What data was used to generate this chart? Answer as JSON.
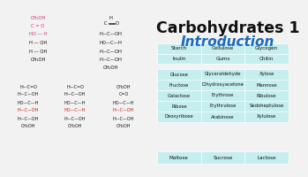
{
  "bg_color": "#f2f2f2",
  "title1": "Carbohydrates 1",
  "title2": "Introduction",
  "title1_color": "#111111",
  "title2_color": "#1a6bbf",
  "table1_rows": [
    [
      "Starch",
      "Cellulose",
      "Glycogen"
    ],
    [
      "Inulin",
      "Gums",
      "Chitin"
    ]
  ],
  "table2_rows": [
    [
      "Glucose",
      "Glyceraldehyde",
      "Xylose"
    ],
    [
      "Fructose",
      "Dihydroxyacetone",
      "Mannose"
    ],
    [
      "Galactose",
      "Erythrose",
      "Ribulose"
    ],
    [
      "Ribose",
      "Erythrulose",
      "Sedoheptulose"
    ],
    [
      "Deoxyribose",
      "Arabinose",
      "Xylulose"
    ]
  ],
  "table3_rows": [
    [
      "Maltose",
      "Sucrose",
      "Lactose"
    ]
  ],
  "table_bg": "#c5eeee",
  "table_line": "#ffffff",
  "chem_black": "#111111",
  "chem_pink": "#cc3377",
  "chem_red": "#cc1111",
  "top_left_struct": [
    [
      "CH₂OH",
      "pink"
    ],
    [
      "C = O",
      "pink"
    ],
    [
      "HO — H",
      "pink"
    ],
    [
      "H — OH",
      "black"
    ],
    [
      "H — OH",
      "black"
    ],
    [
      "CH₂OH",
      "black"
    ]
  ],
  "top_right_struct": [
    [
      "H",
      "black"
    ],
    [
      "H—C—OH",
      "black"
    ],
    [
      "HO—C—H",
      "black"
    ],
    [
      "H—C—OH",
      "black"
    ],
    [
      "H—C—OH",
      "black"
    ],
    [
      "CH₂OH",
      "black"
    ]
  ],
  "bot_struct1": [
    [
      "H—C=O",
      "black"
    ],
    [
      "H—C—OH",
      "black"
    ],
    [
      "HO—C—H",
      "black"
    ],
    [
      "H—C—OH",
      "red"
    ],
    [
      "H—C—OH",
      "black"
    ],
    [
      "CH₂OH",
      "black"
    ]
  ],
  "bot_struct2": [
    [
      "H—C=O",
      "black"
    ],
    [
      "H—C—OH",
      "black"
    ],
    [
      "HO—C—H",
      "black"
    ],
    [
      "HO—C—H",
      "red"
    ],
    [
      "H—C—OH",
      "black"
    ],
    [
      "CH₂OH",
      "black"
    ]
  ],
  "bot_struct3": [
    [
      "CH₂OH",
      "black"
    ],
    [
      "C=O",
      "black"
    ],
    [
      "HO—C—H",
      "black"
    ],
    [
      "H—C—OH",
      "red"
    ],
    [
      "H—C—OH",
      "black"
    ],
    [
      "CH₂OH",
      "black"
    ]
  ]
}
